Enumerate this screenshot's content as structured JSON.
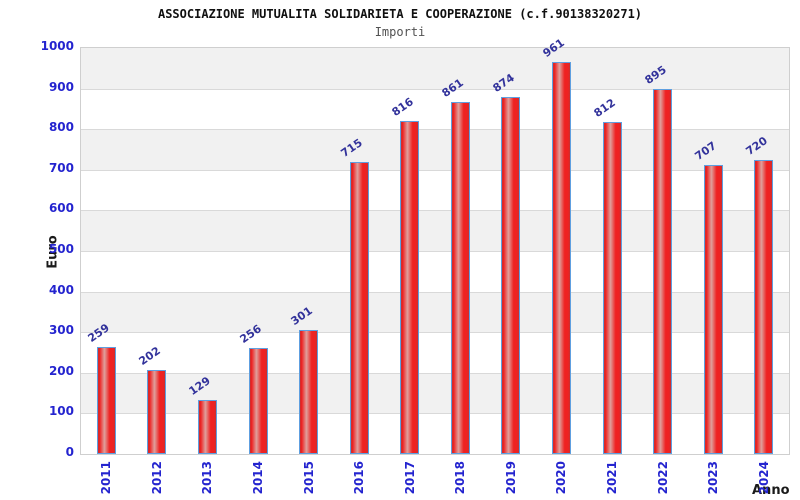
{
  "chart_data": {
    "type": "bar",
    "title": "ASSOCIAZIONE MUTUALITA SOLIDARIETA E COOPERAZIONE (c.f.90138320271)",
    "subtitle": "Importi",
    "xlabel": "Anno",
    "ylabel": "Euro",
    "categories": [
      "2011",
      "2012",
      "2013",
      "2014",
      "2015",
      "2016",
      "2017",
      "2018",
      "2019",
      "2020",
      "2021",
      "2022",
      "2023",
      "2024"
    ],
    "values": [
      259,
      202,
      129,
      256,
      301,
      715,
      816,
      861,
      874,
      961,
      812,
      895,
      707,
      720
    ],
    "ylim": [
      0,
      1000
    ],
    "ytick_step": 100,
    "grid": true,
    "legend": "none",
    "plot_background": "alternating 100-unit horizontal bands, gray topmost",
    "colors": {
      "bar_red": "#ee2222",
      "bar_dark_red": "#c83030",
      "bar_highlight": "#dfa09c",
      "bar_border": "#5e9fe0",
      "tick_label": "#2424cf",
      "value_label": "#32329b",
      "title_text": "#101010",
      "subtitle_text": "#525252",
      "axis_title_text": "#1a1a1a",
      "band_gray": "#f1f1f1",
      "band_white": "#ffffff",
      "gridline": "#d9d9d9",
      "plot_border": "#cfcfcf",
      "background": "#ffffff"
    }
  }
}
